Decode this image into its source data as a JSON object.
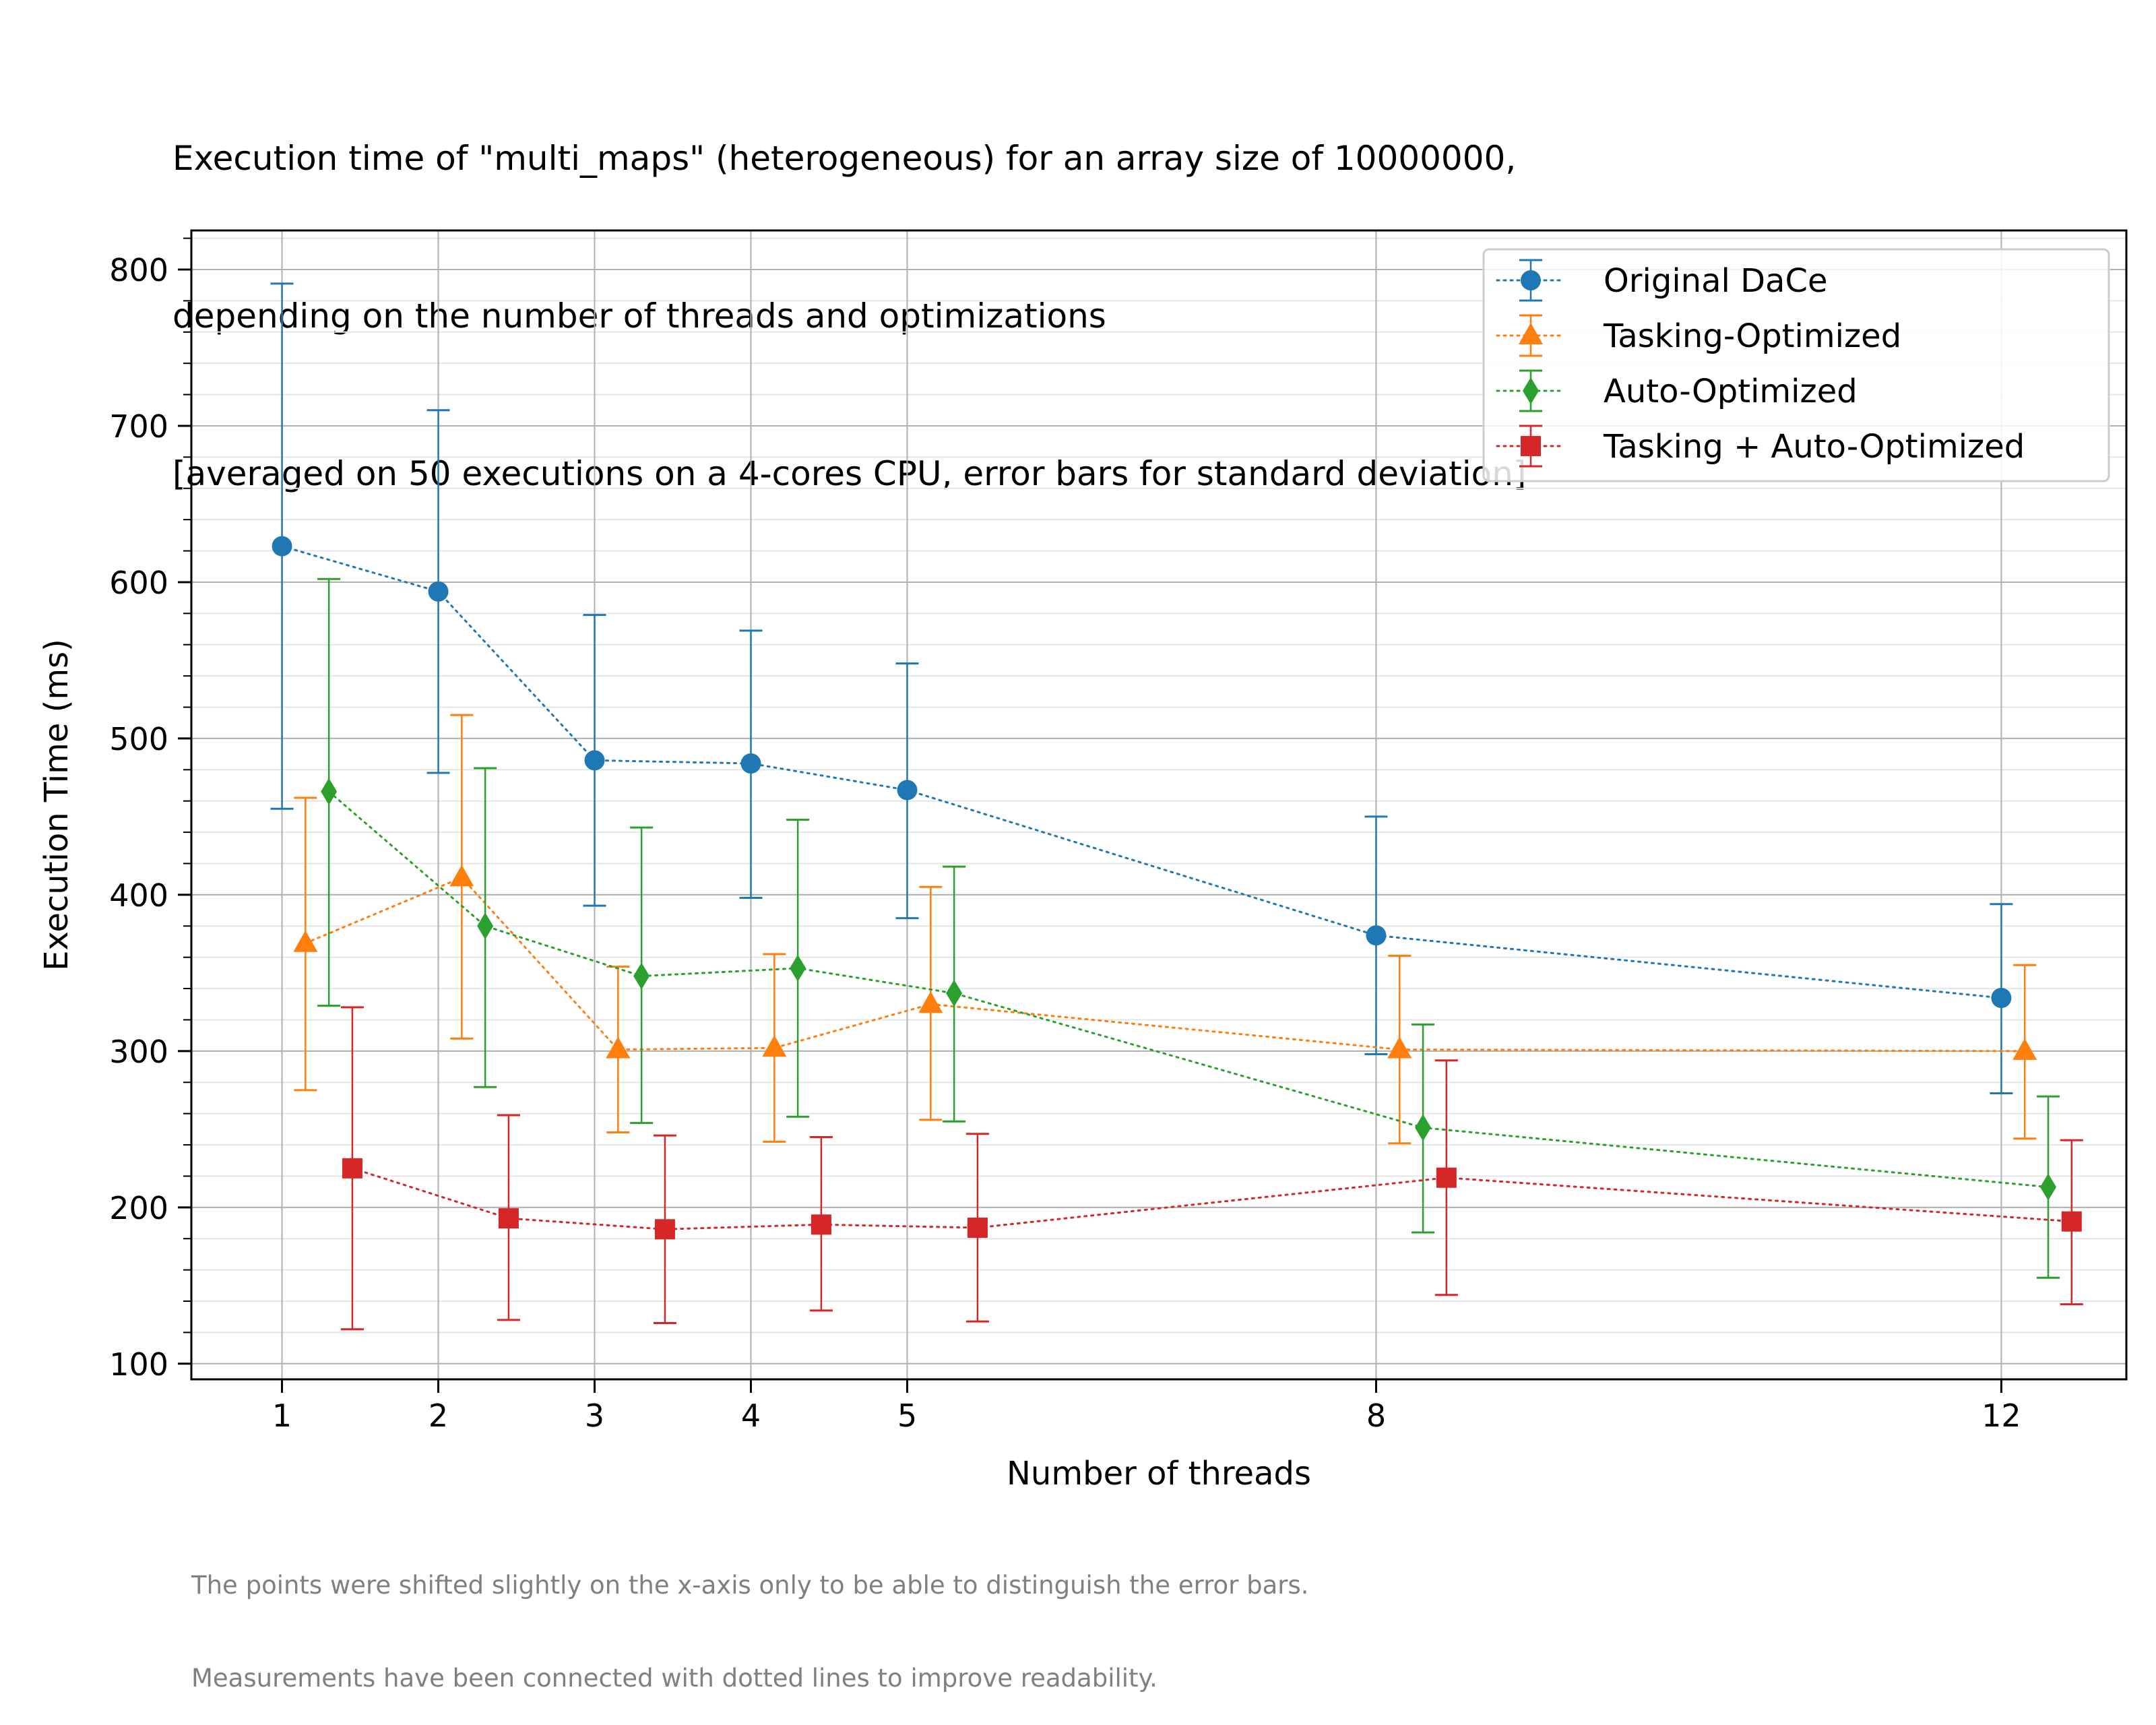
{
  "title_lines": [
    "Execution time of \"multi_maps\" (heterogeneous) for an array size of 10000000,",
    "depending on the number of threads and optimizations",
    "[averaged on 50 executions on a 4-cores CPU, error bars for standard deviation]"
  ],
  "footnote_lines": [
    "The points were shifted slightly on the x-axis only to be able to distinguish the error bars.",
    "Measurements have been connected with dotted lines to improve readability."
  ],
  "chart_data": {
    "type": "line",
    "xlabel": "Number of threads",
    "ylabel": "Execution Time (ms)",
    "x": [
      1,
      2,
      3,
      4,
      5,
      8,
      12
    ],
    "xticks": [
      "1",
      "2",
      "3",
      "4",
      "5",
      "8",
      "12"
    ],
    "yticks": [
      "100",
      "200",
      "300",
      "400",
      "500",
      "600",
      "700",
      "800"
    ],
    "xlim": [
      0.42,
      12.8
    ],
    "ylim": [
      90,
      825
    ],
    "grid": true,
    "minor_grid": true,
    "legend_position": "top-right",
    "line_style": "dotted",
    "error_bars": "standard deviation",
    "series": [
      {
        "name": "Original DaCe",
        "color": "#1f77b4",
        "marker": "circle",
        "values": [
          623,
          594,
          486,
          484,
          467,
          374,
          334
        ],
        "err_low": [
          455,
          478,
          393,
          398,
          385,
          298,
          273
        ],
        "err_high": [
          791,
          710,
          579,
          569,
          548,
          450,
          394
        ]
      },
      {
        "name": "Tasking-Optimized",
        "color": "#ff7f0e",
        "marker": "triangle",
        "values": [
          369,
          411,
          301,
          302,
          330,
          301,
          300
        ],
        "err_low": [
          275,
          308,
          248,
          242,
          256,
          241,
          244
        ],
        "err_high": [
          462,
          515,
          354,
          362,
          405,
          361,
          355
        ]
      },
      {
        "name": "Auto-Optimized",
        "color": "#2ca02c",
        "marker": "diamond",
        "values": [
          466,
          380,
          348,
          353,
          337,
          251,
          213
        ],
        "err_low": [
          329,
          277,
          254,
          258,
          255,
          184,
          155
        ],
        "err_high": [
          602,
          481,
          443,
          448,
          418,
          317,
          271
        ]
      },
      {
        "name": "Tasking + Auto-Optimized",
        "color": "#d62728",
        "marker": "square",
        "values": [
          225,
          193,
          186,
          189,
          187,
          219,
          191
        ],
        "err_low": [
          122,
          128,
          126,
          134,
          127,
          144,
          138
        ],
        "err_high": [
          328,
          259,
          246,
          245,
          247,
          294,
          243
        ]
      }
    ]
  }
}
